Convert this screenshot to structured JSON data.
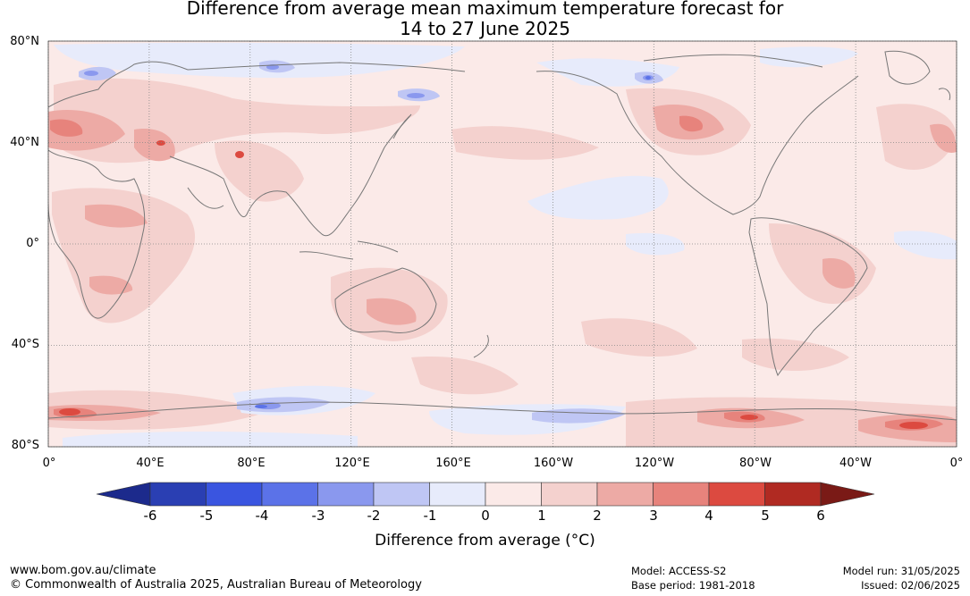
{
  "title": {
    "line1": "Difference from average mean maximum temperature forecast for",
    "line2": "14 to 27 June 2025"
  },
  "map": {
    "lat_ticks": [
      "80°N",
      "40°N",
      "0°",
      "40°S",
      "80°S"
    ],
    "lon_ticks": [
      "0°",
      "40°E",
      "80°E",
      "120°E",
      "160°E",
      "160°W",
      "120°W",
      "80°W",
      "40°W",
      "0°"
    ],
    "background_color": "#fbeae8",
    "coast_color": "#777777",
    "grid_color": "#888888"
  },
  "colorbar": {
    "tick_labels": [
      "-6",
      "-5",
      "-4",
      "-3",
      "-2",
      "-1",
      "0",
      "1",
      "2",
      "3",
      "4",
      "5",
      "6"
    ],
    "colors": [
      "#1c2a8c",
      "#2a3fb3",
      "#3a55e0",
      "#5b72e8",
      "#8a98ee",
      "#bfc6f4",
      "#e7ebfb",
      "#fbeae8",
      "#f4d1ce",
      "#edaaa5",
      "#e7837c",
      "#dc4a40",
      "#b02a22",
      "#7a1a16"
    ],
    "label": "Difference from average (°C)"
  },
  "footer": {
    "website": "www.bom.gov.au/climate",
    "copyright": "© Commonwealth of Australia 2025, Australian Bureau of Meteorology",
    "model": "Model: ACCESS-S2",
    "base_period": "Base period: 1981-2018",
    "model_run": "Model run: 31/05/2025",
    "issued": "Issued: 02/06/2025"
  }
}
